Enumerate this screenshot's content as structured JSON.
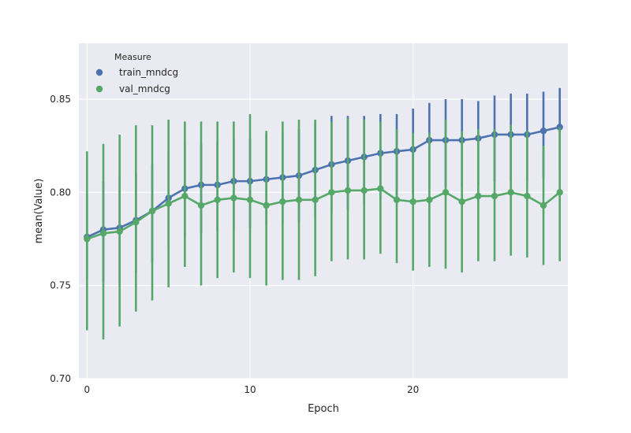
{
  "chart_data": {
    "type": "line",
    "xlabel": "Epoch",
    "ylabel": "mean(Value)",
    "xlim": [
      -0.5,
      29.5
    ],
    "ylim": [
      0.7,
      0.88
    ],
    "xticks": [
      0,
      10,
      20
    ],
    "yticks": [
      0.7,
      0.75,
      0.8,
      0.85
    ],
    "ytick_labels": [
      "0.70",
      "0.75",
      "0.80",
      "0.85"
    ],
    "grid": true,
    "legend": {
      "title": "Measure",
      "placement": "top-left"
    },
    "x": [
      0,
      1,
      2,
      3,
      4,
      5,
      6,
      7,
      8,
      9,
      10,
      11,
      12,
      13,
      14,
      15,
      16,
      17,
      18,
      19,
      20,
      21,
      22,
      23,
      24,
      25,
      26,
      27,
      28,
      29
    ],
    "series": [
      {
        "name": "train_mndcg",
        "color": "#4c72b0",
        "values": [
          0.776,
          0.78,
          0.781,
          0.785,
          0.79,
          0.797,
          0.802,
          0.804,
          0.804,
          0.806,
          0.806,
          0.807,
          0.808,
          0.809,
          0.812,
          0.815,
          0.817,
          0.819,
          0.821,
          0.822,
          0.823,
          0.828,
          0.828,
          0.828,
          0.829,
          0.831,
          0.831,
          0.831,
          0.833,
          0.835
        ],
        "err_low": [
          0.754,
          0.752,
          0.751,
          0.757,
          0.762,
          0.771,
          0.776,
          0.778,
          0.779,
          0.78,
          0.781,
          0.782,
          0.783,
          0.784,
          0.787,
          0.789,
          0.791,
          0.794,
          0.796,
          0.797,
          0.799,
          0.802,
          0.803,
          0.803,
          0.804,
          0.806,
          0.806,
          0.806,
          0.808,
          0.812
        ],
        "err_high": [
          0.799,
          0.806,
          0.809,
          0.81,
          0.815,
          0.822,
          0.826,
          0.826,
          0.827,
          0.829,
          0.829,
          0.831,
          0.832,
          0.834,
          0.837,
          0.841,
          0.841,
          0.841,
          0.842,
          0.842,
          0.845,
          0.848,
          0.85,
          0.85,
          0.849,
          0.852,
          0.853,
          0.853,
          0.854,
          0.856
        ]
      },
      {
        "name": "val_mndcg",
        "color": "#55a868",
        "values": [
          0.775,
          0.778,
          0.779,
          0.784,
          0.79,
          0.794,
          0.798,
          0.793,
          0.796,
          0.797,
          0.796,
          0.793,
          0.795,
          0.796,
          0.796,
          0.8,
          0.801,
          0.801,
          0.802,
          0.796,
          0.795,
          0.796,
          0.8,
          0.795,
          0.798,
          0.798,
          0.8,
          0.798,
          0.793,
          0.8
        ],
        "err_low": [
          0.726,
          0.721,
          0.728,
          0.736,
          0.742,
          0.749,
          0.76,
          0.75,
          0.754,
          0.757,
          0.754,
          0.75,
          0.753,
          0.753,
          0.755,
          0.763,
          0.764,
          0.764,
          0.767,
          0.762,
          0.758,
          0.76,
          0.759,
          0.757,
          0.763,
          0.763,
          0.766,
          0.765,
          0.761,
          0.763
        ],
        "err_high": [
          0.822,
          0.826,
          0.831,
          0.836,
          0.836,
          0.839,
          0.838,
          0.838,
          0.838,
          0.838,
          0.842,
          0.833,
          0.838,
          0.839,
          0.839,
          0.838,
          0.84,
          0.839,
          0.838,
          0.834,
          0.832,
          0.832,
          0.839,
          0.833,
          0.834,
          0.834,
          0.836,
          0.833,
          0.825,
          0.835
        ]
      }
    ]
  }
}
